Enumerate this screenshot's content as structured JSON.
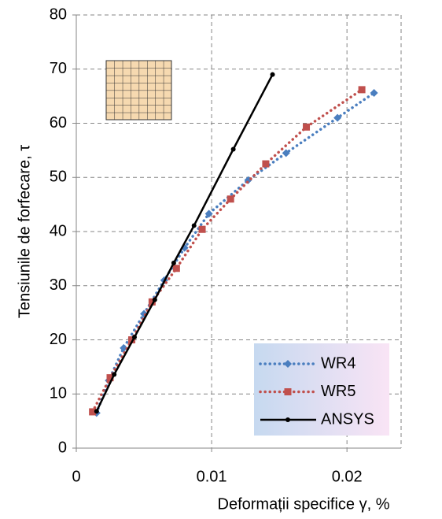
{
  "chart_data": {
    "type": "line",
    "x_label": "Deformații specifice γ, %",
    "y_label": "Tensiunile de forfecare, τ",
    "xlim": [
      0,
      0.024
    ],
    "xticks": [
      0,
      0.01,
      0.02
    ],
    "ylim": [
      0,
      80
    ],
    "yticks": [
      0,
      10,
      20,
      30,
      40,
      50,
      60,
      70,
      80
    ],
    "grid": true,
    "legend": "lower right",
    "series": [
      {
        "name": "WR4",
        "color": "#4a7ebf",
        "line_style": "dotted",
        "marker": "diamond",
        "x": [
          0.0015,
          0.0024,
          0.0035,
          0.005,
          0.0065,
          0.008,
          0.0098,
          0.0127,
          0.0155,
          0.0193,
          0.022
        ],
        "values": [
          6.5,
          12.5,
          18.5,
          24.8,
          31,
          37,
          43.3,
          49.5,
          54.5,
          61,
          65.6
        ]
      },
      {
        "name": "WR5",
        "color": "#c0504d",
        "line_style": "dotted",
        "marker": "square",
        "x": [
          0.0012,
          0.0025,
          0.0041,
          0.0056,
          0.0074,
          0.0093,
          0.0114,
          0.014,
          0.017,
          0.0211
        ],
        "values": [
          6.7,
          13,
          20,
          27,
          33.2,
          40.4,
          46,
          52.5,
          59.3,
          66.2
        ]
      },
      {
        "name": "ANSYS",
        "color": "#000000",
        "line_style": "solid",
        "marker": "circle",
        "x": [
          0.0015,
          0.0028,
          0.0043,
          0.0058,
          0.0072,
          0.0087,
          0.0116,
          0.0145
        ],
        "values": [
          6.8,
          13.6,
          20.5,
          27.4,
          34.2,
          41.1,
          55.2,
          69
        ]
      }
    ]
  }
}
